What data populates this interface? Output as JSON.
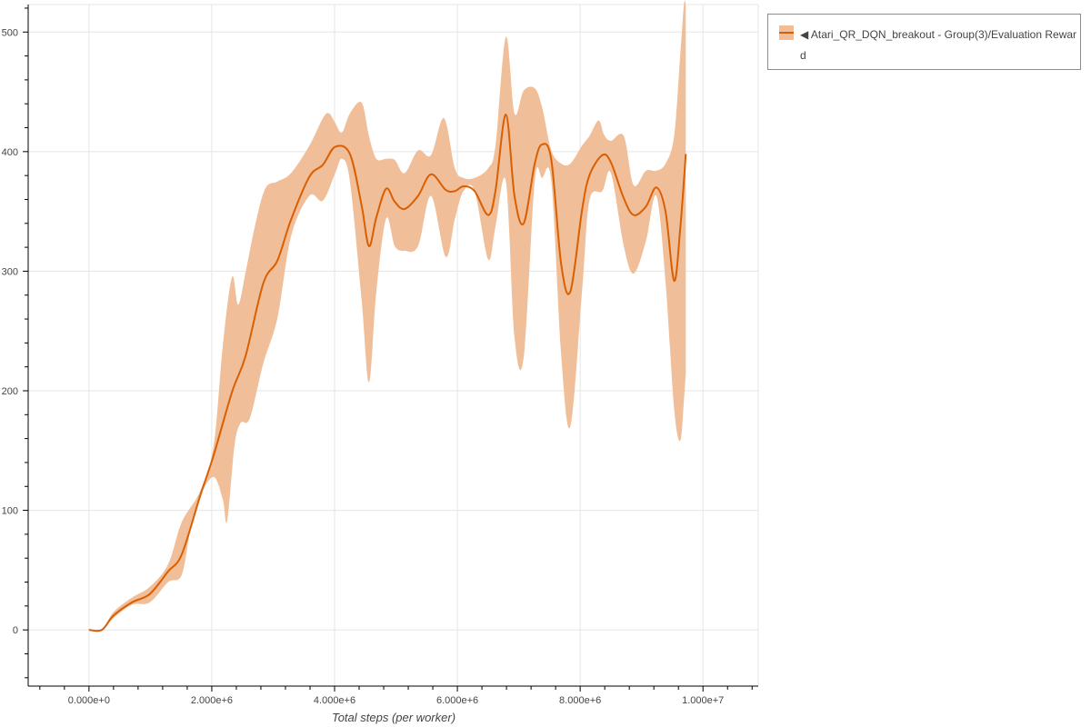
{
  "chart_data": {
    "type": "line",
    "title": "",
    "xlabel": "Total steps (per worker)",
    "ylabel": "",
    "xlim": [
      -990000,
      10900000
    ],
    "ylim": [
      -47,
      523
    ],
    "grid": true,
    "legend_position": "top-right-outside",
    "x_ticks": [
      0,
      2000000,
      4000000,
      6000000,
      8000000,
      10000000
    ],
    "x_tick_labels": [
      "0.000e+0",
      "2.000e+6",
      "4.000e+6",
      "6.000e+6",
      "8.000e+6",
      "1.000e+7"
    ],
    "y_ticks": [
      0,
      100,
      200,
      300,
      400,
      500
    ],
    "y_tick_labels": [
      "0",
      "100",
      "200",
      "300",
      "400",
      "500"
    ],
    "colors": {
      "line": "#d95f02",
      "band": "#f0bf99"
    },
    "series": [
      {
        "name": "◀ Atari_QR_DQN_breakout - Group(3)/Evaluation Reward",
        "mean": {
          "x": [
            0,
            210000,
            400000,
            700000,
            990000,
            1290000,
            1510000,
            1810000,
            2030000,
            2330000,
            2550000,
            2840000,
            3070000,
            3290000,
            3590000,
            3810000,
            4010000,
            4250000,
            4440000,
            4560000,
            4680000,
            4840000,
            4980000,
            5140000,
            5360000,
            5570000,
            5810000,
            5960000,
            6100000,
            6280000,
            6500000,
            6620000,
            6790000,
            6930000,
            7080000,
            7260000,
            7380000,
            7530000,
            7690000,
            7840000,
            8030000,
            8150000,
            8360000,
            8500000,
            8710000,
            8870000,
            9070000,
            9240000,
            9390000,
            9530000,
            9630000,
            9720000
          ],
          "y": [
            0,
            0,
            12,
            23,
            30,
            49,
            63,
            112,
            146,
            199,
            229,
            290,
            309,
            343,
            379,
            389,
            404,
            398,
            355,
            321,
            345,
            369,
            358,
            352,
            363,
            381,
            368,
            367,
            371,
            367,
            347,
            367,
            431,
            363,
            340,
            390,
            406,
            393,
            306,
            283,
            351,
            380,
            397,
            391,
            361,
            347,
            354,
            370,
            350,
            292,
            336,
            398
          ]
        },
        "upper": {
          "x": [
            0,
            210000,
            400000,
            700000,
            990000,
            1290000,
            1510000,
            1810000,
            2030000,
            2180000,
            2330000,
            2430000,
            2550000,
            2700000,
            2870000,
            3070000,
            3290000,
            3590000,
            3810000,
            3910000,
            4010000,
            4120000,
            4250000,
            4440000,
            4560000,
            4680000,
            4840000,
            4980000,
            5140000,
            5360000,
            5570000,
            5780000,
            5960000,
            6100000,
            6280000,
            6500000,
            6620000,
            6790000,
            6930000,
            7080000,
            7260000,
            7380000,
            7530000,
            7690000,
            7840000,
            8030000,
            8150000,
            8300000,
            8390000,
            8500000,
            8710000,
            8870000,
            9070000,
            9240000,
            9390000,
            9530000,
            9630000,
            9690000,
            9720000
          ],
          "y": [
            0,
            0,
            15,
            27,
            36,
            55,
            90,
            116,
            154,
            238,
            295,
            272,
            299,
            337,
            369,
            375,
            382,
            405,
            428,
            432,
            424,
            416,
            432,
            441,
            413,
            394,
            394,
            393,
            382,
            401,
            397,
            428,
            386,
            378,
            378,
            386,
            405,
            496,
            432,
            451,
            453,
            437,
            401,
            390,
            390,
            405,
            413,
            426,
            414,
            409,
            413,
            372,
            384,
            384,
            390,
            413,
            481,
            523,
            523
          ]
        },
        "lower": {
          "x": [
            0,
            210000,
            400000,
            700000,
            990000,
            1290000,
            1510000,
            1660000,
            1810000,
            2030000,
            2180000,
            2250000,
            2370000,
            2470000,
            2620000,
            2840000,
            3070000,
            3290000,
            3590000,
            3810000,
            4010000,
            4120000,
            4250000,
            4440000,
            4560000,
            4680000,
            4840000,
            4980000,
            5140000,
            5360000,
            5570000,
            5810000,
            5960000,
            6100000,
            6280000,
            6500000,
            6620000,
            6790000,
            6930000,
            7080000,
            7260000,
            7380000,
            7530000,
            7690000,
            7840000,
            8030000,
            8150000,
            8360000,
            8500000,
            8710000,
            8870000,
            9070000,
            9240000,
            9390000,
            9530000,
            9630000,
            9690000,
            9720000
          ],
          "y": [
            0,
            0,
            10,
            21,
            23,
            40,
            46,
            86,
            112,
            128,
            109,
            91,
            154,
            173,
            177,
            223,
            261,
            329,
            363,
            359,
            382,
            394,
            375,
            276,
            207,
            283,
            344,
            321,
            317,
            321,
            363,
            312,
            344,
            367,
            367,
            310,
            337,
            375,
            245,
            228,
            375,
            378,
            375,
            230,
            170,
            283,
            359,
            367,
            382,
            321,
            298,
            325,
            363,
            291,
            185,
            158,
            192,
            215
          ]
        }
      }
    ]
  },
  "legend": {
    "label": "◀ Atari_QR_DQN_breakout - Group(3)/Evaluation Reward"
  }
}
